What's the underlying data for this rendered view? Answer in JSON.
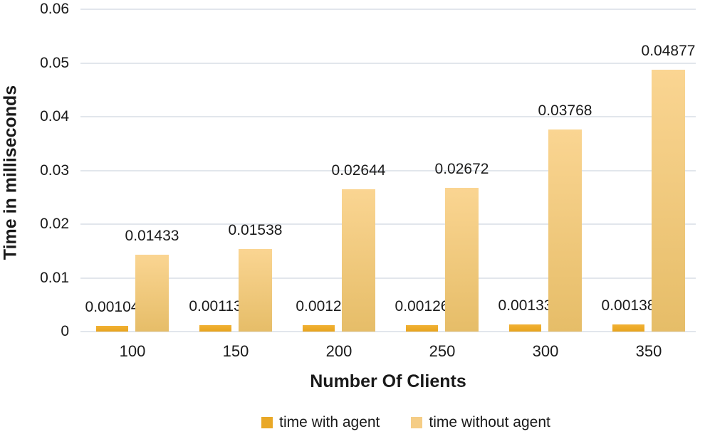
{
  "chart_data": {
    "type": "bar",
    "title": "",
    "xlabel": "Number Of Clients",
    "ylabel": "Time in milliseconds",
    "categories": [
      "100",
      "150",
      "200",
      "250",
      "300",
      "350"
    ],
    "series": [
      {
        "name": "time with agent",
        "values": [
          0.00104,
          0.00113,
          0.0012,
          0.00126,
          0.00133,
          0.00138
        ],
        "color_top": "#F1B134",
        "color_bottom": "#E8A41E",
        "legend_color": "#E9A827"
      },
      {
        "name": "time without agent",
        "values": [
          0.01433,
          0.01538,
          0.02644,
          0.02672,
          0.03768,
          0.04877
        ],
        "color_top": "#FAD592",
        "color_bottom": "#E6BD68",
        "legend_color": "#F5CD86"
      }
    ],
    "ylim": [
      0,
      0.06
    ],
    "yticks": [
      "0",
      "0.01",
      "0.02",
      "0.03",
      "0.04",
      "0.05",
      "0.06"
    ],
    "grid": true,
    "legend_position": "bottom",
    "colors": {
      "text": "#1a1a1a",
      "gridline": "#e2e6ec",
      "background": "#ffffff"
    }
  }
}
